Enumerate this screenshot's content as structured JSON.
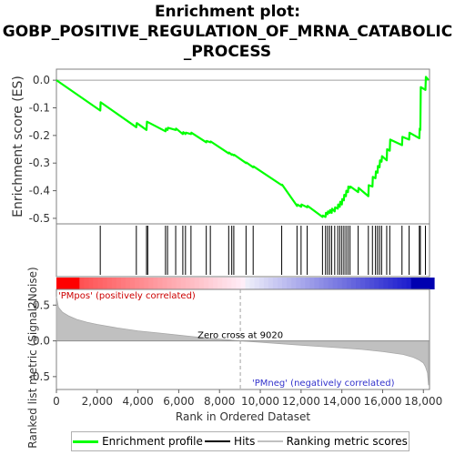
{
  "title_lines": [
    "Enrichment plot:",
    "GOBP_POSITIVE_REGULATION_OF_MRNA_CATABOLIC",
    "_PROCESS"
  ],
  "legend": {
    "items": [
      {
        "label": "Enrichment profile",
        "color": "#00ff00"
      },
      {
        "label": "Hits",
        "color": "#000000"
      },
      {
        "label": "Ranking metric scores",
        "color": "#c0c0c0"
      }
    ]
  },
  "chart_data": [
    {
      "type": "line",
      "ylabel": "Enrichment score (ES)",
      "xlim": [
        0,
        18300
      ],
      "ylim": [
        -0.52,
        0.04
      ],
      "yticks": [
        0.0,
        -0.1,
        -0.2,
        -0.3,
        -0.4,
        -0.5
      ],
      "ytick_labels": [
        "0.0",
        "-0.1",
        "-0.2",
        "-0.3",
        "-0.4",
        "-0.5"
      ],
      "grid": false,
      "series": [
        {
          "name": "Enrichment profile",
          "color": "#00ff00",
          "x": [
            0,
            2150,
            2170,
            3920,
            3940,
            4420,
            4440,
            5350,
            5370,
            5450,
            5470,
            5850,
            5870,
            6200,
            6220,
            6330,
            6350,
            6600,
            6620,
            7350,
            7370,
            7550,
            7570,
            8450,
            8470,
            8600,
            8620,
            8700,
            8720,
            9300,
            9320,
            9650,
            9670,
            11050,
            11070,
            11800,
            11820,
            12000,
            12020,
            12300,
            12320,
            13050,
            13070,
            13200,
            13220,
            13300,
            13320,
            13400,
            13420,
            13500,
            13520,
            13650,
            13670,
            13800,
            13820,
            13900,
            13920,
            14000,
            14020,
            14100,
            14120,
            14200,
            14220,
            14300,
            14320,
            14400,
            14420,
            14800,
            14820,
            15300,
            15320,
            15500,
            15520,
            15650,
            15670,
            15750,
            15770,
            15850,
            15870,
            15950,
            15970,
            16200,
            16220,
            16350,
            16370,
            16950,
            16970,
            17300,
            17320,
            17800,
            17820,
            17850,
            17870,
            18100,
            18120,
            18250
          ],
          "y": [
            0.0,
            -0.11,
            -0.08,
            -0.17,
            -0.155,
            -0.18,
            -0.15,
            -0.185,
            -0.175,
            -0.18,
            -0.172,
            -0.18,
            -0.175,
            -0.195,
            -0.188,
            -0.195,
            -0.19,
            -0.195,
            -0.19,
            -0.225,
            -0.22,
            -0.225,
            -0.222,
            -0.265,
            -0.262,
            -0.27,
            -0.268,
            -0.272,
            -0.27,
            -0.3,
            -0.298,
            -0.315,
            -0.312,
            -0.38,
            -0.378,
            -0.455,
            -0.45,
            -0.458,
            -0.45,
            -0.46,
            -0.455,
            -0.495,
            -0.49,
            -0.495,
            -0.48,
            -0.485,
            -0.475,
            -0.48,
            -0.47,
            -0.48,
            -0.465,
            -0.475,
            -0.46,
            -0.465,
            -0.45,
            -0.458,
            -0.44,
            -0.45,
            -0.43,
            -0.435,
            -0.415,
            -0.42,
            -0.4,
            -0.405,
            -0.385,
            -0.39,
            -0.385,
            -0.405,
            -0.39,
            -0.42,
            -0.38,
            -0.385,
            -0.35,
            -0.355,
            -0.33,
            -0.335,
            -0.31,
            -0.315,
            -0.29,
            -0.295,
            -0.275,
            -0.29,
            -0.25,
            -0.255,
            -0.215,
            -0.235,
            -0.205,
            -0.215,
            -0.19,
            -0.21,
            -0.175,
            -0.18,
            -0.025,
            -0.035,
            0.012,
            0.0
          ]
        }
      ]
    },
    {
      "type": "scatter",
      "name": "Hits",
      "xlim": [
        0,
        18300
      ],
      "hits": [
        2150,
        3920,
        4420,
        4480,
        5350,
        5450,
        5850,
        6200,
        6330,
        6600,
        7350,
        7550,
        8450,
        8600,
        8700,
        9300,
        9650,
        11050,
        11800,
        12000,
        12300,
        13050,
        13200,
        13300,
        13400,
        13500,
        13650,
        13800,
        13900,
        14000,
        14100,
        14200,
        14300,
        14400,
        14800,
        15300,
        15500,
        15650,
        15750,
        15850,
        15950,
        16200,
        16350,
        16950,
        17300,
        17800,
        17850,
        18100
      ]
    },
    {
      "type": "area",
      "ylabel": "Ranked list metric (Signal2Noise)",
      "xlabel": "Rank in Ordered Dataset",
      "xlim": [
        0,
        18300
      ],
      "ylim": [
        -0.68,
        0.72
      ],
      "xticks": [
        0,
        2000,
        4000,
        6000,
        8000,
        10000,
        12000,
        14000,
        16000,
        18000
      ],
      "xtick_labels": [
        "0",
        "2,000",
        "4,000",
        "6,000",
        "8,000",
        "10,000",
        "12,000",
        "14,000",
        "16,000",
        "18,000"
      ],
      "yticks": [
        0.5,
        0.0,
        -0.5
      ],
      "ytick_labels": [
        "0.5",
        "0.0",
        "-0.5"
      ],
      "x": [
        0,
        100,
        300,
        600,
        1000,
        1500,
        2000,
        3000,
        4000,
        5000,
        6000,
        7000,
        8000,
        9020,
        10000,
        11000,
        12000,
        13000,
        14000,
        15000,
        16000,
        17000,
        17500,
        17800,
        18000,
        18100,
        18200,
        18250
      ],
      "values": [
        0.62,
        0.47,
        0.4,
        0.35,
        0.3,
        0.26,
        0.23,
        0.18,
        0.14,
        0.11,
        0.08,
        0.05,
        0.025,
        0.0,
        -0.02,
        -0.04,
        -0.06,
        -0.08,
        -0.1,
        -0.12,
        -0.15,
        -0.19,
        -0.23,
        -0.27,
        -0.31,
        -0.36,
        -0.45,
        -0.62
      ],
      "annotations": [
        {
          "text": "Zero cross at 9020",
          "x": 9020
        },
        {
          "text": "'PMpos' (positively correlated)"
        },
        {
          "text": "'PMneg' (negatively correlated)"
        }
      ],
      "zero_cross": 9020
    }
  ]
}
